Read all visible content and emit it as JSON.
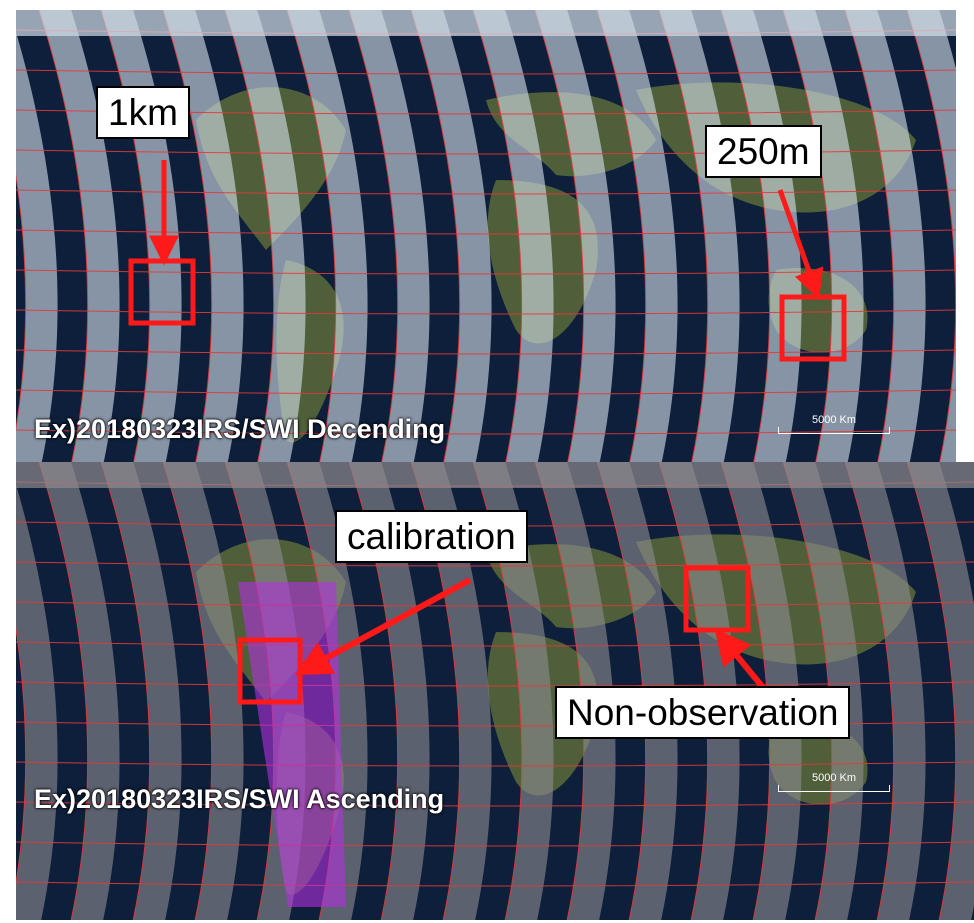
{
  "panels": {
    "top": {
      "caption": "Ex)20180323IRS/SWI Decending",
      "scalebar": "5000 Km",
      "labels": {
        "resolution_1km": "1km",
        "resolution_250m": "250m"
      }
    },
    "bottom": {
      "caption": "Ex)20180323IRS/SWI Ascending",
      "scalebar": "5000 Km",
      "labels": {
        "calibration": "calibration",
        "non_observation": "Non-observation"
      }
    }
  },
  "colors": {
    "highlight": "#ff1a1a",
    "grid": "#e23a3a",
    "swath_top": "#d3dde8",
    "swath_bottom": "#8e8a8f",
    "calibration": "#b030e0",
    "ocean": "#0d1f3a"
  }
}
